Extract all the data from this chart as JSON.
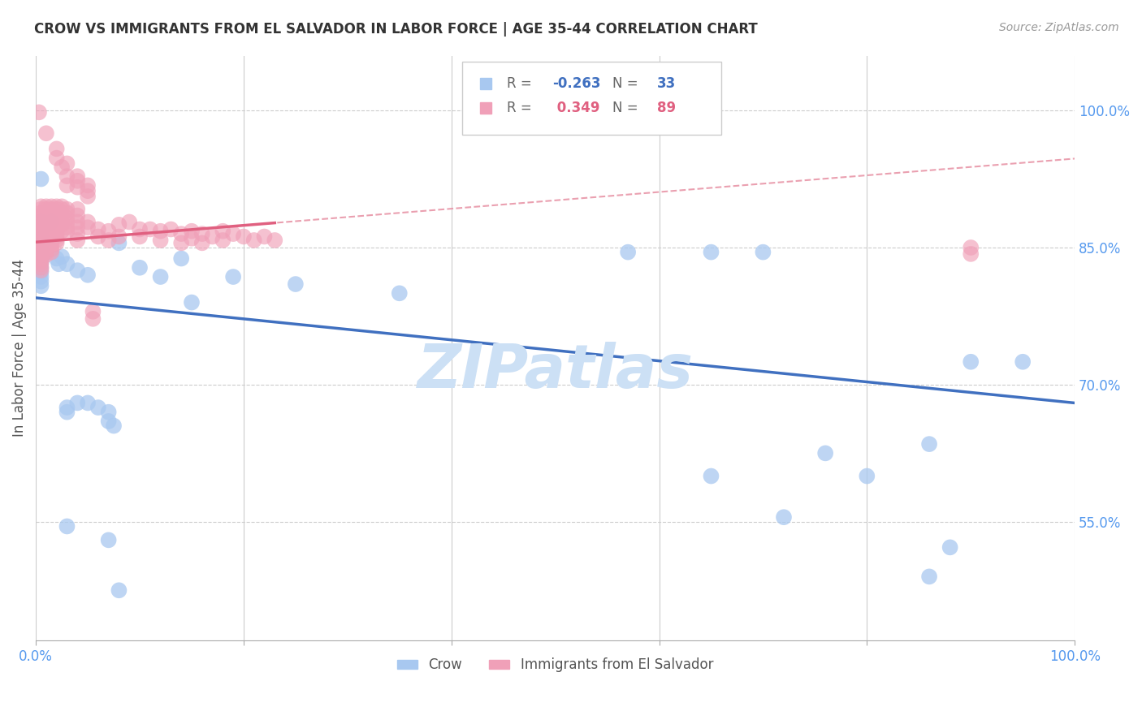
{
  "title": "CROW VS IMMIGRANTS FROM EL SALVADOR IN LABOR FORCE | AGE 35-44 CORRELATION CHART",
  "source_text": "Source: ZipAtlas.com",
  "ylabel": "In Labor Force | Age 35-44",
  "xlim": [
    0.0,
    1.0
  ],
  "ylim": [
    0.42,
    1.06
  ],
  "x_ticks": [
    0.0,
    0.2,
    0.4,
    0.6,
    0.8,
    1.0
  ],
  "x_tick_labels": [
    "0.0%",
    "",
    "",
    "",
    "",
    "100.0%"
  ],
  "y_tick_labels": [
    "55.0%",
    "70.0%",
    "85.0%",
    "100.0%"
  ],
  "y_ticks": [
    0.55,
    0.7,
    0.85,
    1.0
  ],
  "legend_crow_label": "Crow",
  "legend_salvador_label": "Immigrants from El Salvador",
  "crow_R": -0.263,
  "crow_N": 33,
  "salvador_R": 0.349,
  "salvador_N": 89,
  "crow_color": "#a8c8f0",
  "salvador_color": "#f0a0b8",
  "crow_line_color": "#4070c0",
  "salvador_line_color": "#e06080",
  "salvador_dashed_color": "#e896a8",
  "watermark_text": "ZIPatlas",
  "watermark_color": "#cce0f5",
  "background_color": "#ffffff",
  "crow_points": [
    [
      0.005,
      0.925
    ],
    [
      0.005,
      0.878
    ],
    [
      0.005,
      0.873
    ],
    [
      0.005,
      0.868
    ],
    [
      0.005,
      0.863
    ],
    [
      0.005,
      0.858
    ],
    [
      0.005,
      0.853
    ],
    [
      0.005,
      0.848
    ],
    [
      0.005,
      0.843
    ],
    [
      0.005,
      0.838
    ],
    [
      0.005,
      0.833
    ],
    [
      0.005,
      0.828
    ],
    [
      0.005,
      0.823
    ],
    [
      0.005,
      0.818
    ],
    [
      0.005,
      0.813
    ],
    [
      0.005,
      0.808
    ],
    [
      0.01,
      0.875
    ],
    [
      0.015,
      0.878
    ],
    [
      0.02,
      0.838
    ],
    [
      0.022,
      0.832
    ],
    [
      0.025,
      0.84
    ],
    [
      0.03,
      0.832
    ],
    [
      0.04,
      0.825
    ],
    [
      0.05,
      0.82
    ],
    [
      0.03,
      0.675
    ],
    [
      0.03,
      0.67
    ],
    [
      0.04,
      0.68
    ],
    [
      0.05,
      0.68
    ],
    [
      0.06,
      0.675
    ],
    [
      0.07,
      0.67
    ],
    [
      0.07,
      0.66
    ],
    [
      0.075,
      0.655
    ],
    [
      0.08,
      0.855
    ],
    [
      0.1,
      0.828
    ],
    [
      0.12,
      0.818
    ],
    [
      0.14,
      0.838
    ],
    [
      0.15,
      0.79
    ],
    [
      0.19,
      0.818
    ],
    [
      0.25,
      0.81
    ],
    [
      0.35,
      0.8
    ],
    [
      0.57,
      0.845
    ],
    [
      0.65,
      0.845
    ],
    [
      0.65,
      0.6
    ],
    [
      0.7,
      0.845
    ],
    [
      0.72,
      0.555
    ],
    [
      0.76,
      0.625
    ],
    [
      0.8,
      0.6
    ],
    [
      0.86,
      0.635
    ],
    [
      0.86,
      0.49
    ],
    [
      0.88,
      0.522
    ],
    [
      0.9,
      0.725
    ],
    [
      0.95,
      0.725
    ],
    [
      0.03,
      0.545
    ],
    [
      0.07,
      0.53
    ],
    [
      0.08,
      0.475
    ]
  ],
  "salvador_points": [
    [
      0.003,
      0.998
    ],
    [
      0.01,
      0.975
    ],
    [
      0.02,
      0.958
    ],
    [
      0.02,
      0.948
    ],
    [
      0.025,
      0.938
    ],
    [
      0.03,
      0.942
    ],
    [
      0.03,
      0.928
    ],
    [
      0.03,
      0.918
    ],
    [
      0.04,
      0.928
    ],
    [
      0.04,
      0.923
    ],
    [
      0.04,
      0.916
    ],
    [
      0.05,
      0.918
    ],
    [
      0.05,
      0.912
    ],
    [
      0.05,
      0.906
    ],
    [
      0.005,
      0.895
    ],
    [
      0.005,
      0.892
    ],
    [
      0.005,
      0.888
    ],
    [
      0.005,
      0.885
    ],
    [
      0.005,
      0.882
    ],
    [
      0.005,
      0.878
    ],
    [
      0.005,
      0.875
    ],
    [
      0.005,
      0.872
    ],
    [
      0.005,
      0.868
    ],
    [
      0.005,
      0.865
    ],
    [
      0.005,
      0.862
    ],
    [
      0.005,
      0.858
    ],
    [
      0.005,
      0.855
    ],
    [
      0.005,
      0.852
    ],
    [
      0.005,
      0.848
    ],
    [
      0.005,
      0.845
    ],
    [
      0.005,
      0.842
    ],
    [
      0.005,
      0.838
    ],
    [
      0.005,
      0.835
    ],
    [
      0.005,
      0.832
    ],
    [
      0.005,
      0.828
    ],
    [
      0.005,
      0.825
    ],
    [
      0.01,
      0.895
    ],
    [
      0.01,
      0.892
    ],
    [
      0.01,
      0.888
    ],
    [
      0.01,
      0.885
    ],
    [
      0.01,
      0.882
    ],
    [
      0.01,
      0.878
    ],
    [
      0.01,
      0.875
    ],
    [
      0.01,
      0.872
    ],
    [
      0.01,
      0.868
    ],
    [
      0.01,
      0.865
    ],
    [
      0.01,
      0.862
    ],
    [
      0.01,
      0.858
    ],
    [
      0.01,
      0.855
    ],
    [
      0.01,
      0.852
    ],
    [
      0.01,
      0.848
    ],
    [
      0.01,
      0.845
    ],
    [
      0.01,
      0.842
    ],
    [
      0.015,
      0.895
    ],
    [
      0.015,
      0.892
    ],
    [
      0.015,
      0.888
    ],
    [
      0.015,
      0.885
    ],
    [
      0.015,
      0.882
    ],
    [
      0.015,
      0.878
    ],
    [
      0.015,
      0.875
    ],
    [
      0.015,
      0.872
    ],
    [
      0.015,
      0.868
    ],
    [
      0.015,
      0.865
    ],
    [
      0.015,
      0.862
    ],
    [
      0.015,
      0.858
    ],
    [
      0.015,
      0.855
    ],
    [
      0.015,
      0.852
    ],
    [
      0.015,
      0.848
    ],
    [
      0.015,
      0.845
    ],
    [
      0.02,
      0.895
    ],
    [
      0.02,
      0.892
    ],
    [
      0.02,
      0.888
    ],
    [
      0.02,
      0.885
    ],
    [
      0.02,
      0.882
    ],
    [
      0.02,
      0.878
    ],
    [
      0.02,
      0.875
    ],
    [
      0.02,
      0.872
    ],
    [
      0.02,
      0.868
    ],
    [
      0.02,
      0.865
    ],
    [
      0.02,
      0.862
    ],
    [
      0.02,
      0.858
    ],
    [
      0.02,
      0.855
    ],
    [
      0.025,
      0.895
    ],
    [
      0.025,
      0.892
    ],
    [
      0.025,
      0.888
    ],
    [
      0.025,
      0.885
    ],
    [
      0.025,
      0.878
    ],
    [
      0.025,
      0.875
    ],
    [
      0.025,
      0.868
    ],
    [
      0.03,
      0.892
    ],
    [
      0.03,
      0.888
    ],
    [
      0.03,
      0.882
    ],
    [
      0.03,
      0.878
    ],
    [
      0.03,
      0.872
    ],
    [
      0.03,
      0.868
    ],
    [
      0.04,
      0.892
    ],
    [
      0.04,
      0.885
    ],
    [
      0.04,
      0.878
    ],
    [
      0.04,
      0.872
    ],
    [
      0.04,
      0.865
    ],
    [
      0.04,
      0.858
    ],
    [
      0.05,
      0.878
    ],
    [
      0.05,
      0.872
    ],
    [
      0.06,
      0.87
    ],
    [
      0.06,
      0.862
    ],
    [
      0.07,
      0.868
    ],
    [
      0.07,
      0.858
    ],
    [
      0.08,
      0.875
    ],
    [
      0.08,
      0.862
    ],
    [
      0.09,
      0.878
    ],
    [
      0.1,
      0.87
    ],
    [
      0.1,
      0.862
    ],
    [
      0.11,
      0.87
    ],
    [
      0.12,
      0.868
    ],
    [
      0.12,
      0.858
    ],
    [
      0.13,
      0.87
    ],
    [
      0.14,
      0.865
    ],
    [
      0.14,
      0.855
    ],
    [
      0.15,
      0.868
    ],
    [
      0.15,
      0.86
    ],
    [
      0.16,
      0.865
    ],
    [
      0.16,
      0.855
    ],
    [
      0.17,
      0.862
    ],
    [
      0.18,
      0.868
    ],
    [
      0.18,
      0.858
    ],
    [
      0.19,
      0.865
    ],
    [
      0.2,
      0.862
    ],
    [
      0.21,
      0.858
    ],
    [
      0.22,
      0.862
    ],
    [
      0.23,
      0.858
    ],
    [
      0.055,
      0.78
    ],
    [
      0.055,
      0.772
    ],
    [
      0.9,
      0.85
    ],
    [
      0.9,
      0.843
    ]
  ]
}
